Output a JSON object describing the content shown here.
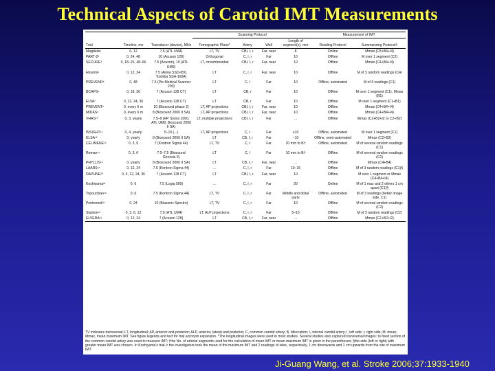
{
  "title": "Technical Aspects of Carotid IMT Measurements",
  "citation": "Ji-Guang Wang, et al. Stroke 2006;37:1933-1940",
  "table": {
    "group_headers": {
      "scanning": "Scanning Protocol",
      "measurement": "Measurement of IMT"
    },
    "columns": [
      "Trial",
      "Timeline, mo",
      "Transducer (device), MHz",
      "Tomographic Plane*",
      "Artery",
      "Wall",
      "Length of segment(s), mm",
      "Reading Protocol",
      "Summarizing Protocol†"
    ],
    "rows": [
      [
        "Magdalis¹",
        "0, 12",
        "7.5 (ATL UM4)",
        "LT, TV",
        "CBI, I, r",
        "Far, near",
        "8",
        "Online",
        "Mmax (C8+B4+I4)"
      ],
      [
        "PART-2²",
        "0, 24, 48",
        "10 (Acuson 128)",
        "Orthogonal",
        "C, I, r",
        "Far",
        "10",
        "Offline",
        "M over 1 segment (C2)"
      ],
      [
        "SECURE³",
        "0, 18–26, 48–66",
        "7.5 (Acuson), 10 (ATL UM9)",
        "LT, circumferential",
        "CBI, I, r",
        "Far, near",
        "10",
        "Offline",
        "Mmax (C4+B4+I4)"
      ],
      [
        "Hosomi⁴",
        "0, 12, 24",
        "7.5 (Aloka SSD-650, Toshiba SSH-160A)",
        "LT",
        "C, I, r",
        "Far, near",
        "10",
        "Offline",
        "M of 3 random readings (C4)"
      ],
      [
        "PREVEND⁵",
        "0, 48",
        "7.5 (Pie Medical Scanner 200)",
        "LT",
        "C, I",
        "Far",
        "10",
        "Offline, automated",
        "M of 3 readings (C1)"
      ],
      [
        "BCAPS⁶",
        "0, 18, 36",
        "7 (Acuson 128 CT)",
        "LT",
        "CB, r",
        "Far",
        "10",
        "Offline",
        "M over 1 segment (C1), Mmax (B1)"
      ],
      [
        "ELVA⁷",
        "0, 12, 24, 36",
        "7 (Acuson 128 CT)",
        "LT",
        "CB, r",
        "Far",
        "10",
        "Offline",
        "M over 1 segment (C1+B1)"
      ],
      [
        "PREVENT⁸",
        "0, every 6 m",
        "10 (Biosound phase 2)",
        "LT, AP projections",
        "CBI, I, r",
        "Far, near",
        "10",
        "Offline",
        "Mmax (C4+B4+I4)"
      ],
      [
        "MIDAS⁹",
        "0, every 6 m",
        "8 (Biosound 2000 II SA)",
        "LT, AP projections",
        "CBI, I, r",
        "Far, near",
        "10",
        "Offline",
        "Mmax (C4+B4+I4)"
      ],
      [
        "VHAS¹⁰",
        "0, 3, yearly",
        "7.5–8 (HP Sonos 1000, ATL UM9, Biosound 2000 II SA)",
        "LT, multiple projections",
        "CBI, I, r",
        "Far",
        "...",
        "Offline",
        "Mmax (C2+B2+I2 or C2+B2)"
      ],
      [
        "INSIGHT¹¹",
        "0, 4, yearly",
        "5–10 (...)",
        "LT, AP projections",
        "C, r",
        "Far",
        "≥10",
        "Offline, automated",
        "M over 1 segment (C1)"
      ],
      [
        "ELSA¹²",
        "0, yearly",
        "8 (Biosound 2000 II SA)",
        "LT",
        "CB, I, r",
        "Far",
        "~10",
        "Offline, semi-automated",
        "Mmax (C2+B2)"
      ],
      [
        "CELIMENE¹³",
        "0, 3, 9",
        "7 (Kontron Sigma 44)",
        "LT, TV",
        "C, r",
        "Far",
        "20 mm to B†",
        "Offline, automated",
        "M of several random readings (C1)"
      ],
      [
        "Roman¹⁴",
        "0, 3, 6",
        "7.0–7.5 (Biosound Genesis II)",
        "LT",
        "C, I",
        "Far",
        "10 mm to B†",
        "Offline",
        "M of several random readings (C1)"
      ],
      [
        "PHYLLIS¹⁵",
        "0, yearly",
        "8 (Biosound 2000 II SA)",
        "LT",
        "CB, I, r",
        "Far, near",
        "...",
        "Offline",
        "Mmax (C4+B4)"
      ],
      [
        "LAARS¹⁶",
        "0, 12, 24",
        "7.5 (Kontron Sigma 44)",
        "...",
        "C, I, r",
        "Far",
        "10–15",
        "Offline",
        "M of 3 random readings (C1)§"
      ],
      [
        "DAPHNE²⁰",
        "0, 6, 12, 24, 36",
        "7 (Acuson 128 CT)",
        "LT",
        "CBI, I, r",
        "Far, near",
        "10",
        "Offline",
        "M over 1 segment or Mmax (C4+B4+I4)"
      ],
      [
        "Koshiyama²¹",
        "0, 6",
        "7.5 (Logiq 500)",
        "...",
        "C, I, r",
        "Far",
        "20",
        "Online",
        "M of 1 max and 2 others 1 cm apart (C1)§"
      ],
      [
        "Topouchian¹⁶",
        "0, 6",
        "7.5 (Kontron Sigma 44)",
        "LT, TV",
        "C, I, r",
        "Far",
        "Middle and distal parts",
        "Offline, automated",
        "M of 3 readings (better image side, C1)"
      ],
      [
        "Pontremoli¹⁷",
        "0, 24",
        "10 (Biasonic Spectro)",
        "LT, TV",
        "C, I, r",
        "Far",
        "10",
        "Offline",
        "M of several random readings (C2)"
      ],
      [
        "Stanton¹⁸",
        "0, 3, 6, 12",
        "7.5 (ATL UM4)",
        "LT, ALP projections",
        "C, I, r",
        "Far",
        "5–15",
        "Offline",
        "M of 3 random readings (C2)"
      ],
      [
        "ELVERA¹⁹",
        "0, 12, 24",
        "7 (Acuson 128)",
        "LT",
        "CB, I, r",
        "Far, near",
        "...",
        "Offline",
        "Mmax (C2+B2+I2)"
      ]
    ],
    "footnote": "TV indicates transversal; LT, longitudinal; AP, anterior and posterior; ALP, anterior, lateral and posterior; C, common carotid artery; B, bifurcation; I, internal carotid artery; l, left side; r, right side; M, mean; Mmax, mean maximum IMT. See figure legends and text for trial acronym expansion. *The longitudinal images were used in most studies. Several studies also captured transversal images: to fixed section of the common carotid artery was used to measure IMT; †the No. of arterial segments used for the calculation of mean IMT or mean maximum IMT is given in the parentheses; §the side (left or right) with greater mean IMT was chosen. In Koshiyama's trial,²¹ the investigators took the mean of the maximum IMT and 2 readings of sites, respectively, 1 cm downwards and 1 cm upwards from the site of maximum IMT."
  }
}
